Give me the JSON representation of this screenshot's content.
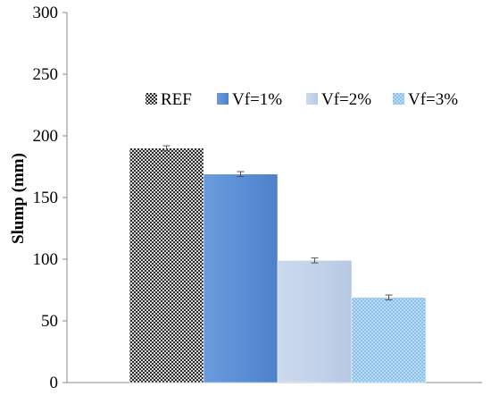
{
  "chart_data": {
    "type": "bar",
    "title": "",
    "xlabel": "",
    "ylabel": "Slump (mm)",
    "ylim": [
      0,
      300
    ],
    "yticks": [
      0,
      50,
      100,
      150,
      200,
      250,
      300
    ],
    "grid": false,
    "legend_position": "top-right",
    "series": [
      {
        "name": "REF",
        "value": 190,
        "error": 2,
        "color": "#3a3a3a",
        "pattern": "dark-checker"
      },
      {
        "name": "Vf=1%",
        "value": 169,
        "error": 2,
        "color": "#5b8fd6",
        "pattern": "solid"
      },
      {
        "name": "Vf=2%",
        "value": 99,
        "error": 2,
        "color": "#c3d3ea",
        "pattern": "solid"
      },
      {
        "name": "Vf=3%",
        "value": 69,
        "error": 2,
        "color": "#9ec8ee",
        "pattern": "light-dots"
      }
    ]
  }
}
